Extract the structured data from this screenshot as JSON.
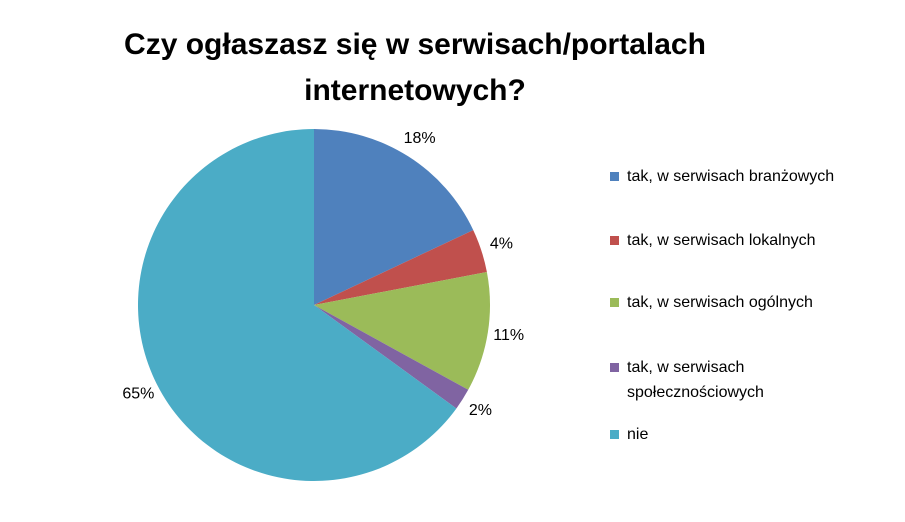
{
  "chart_data": {
    "type": "pie",
    "title": "Czy ogłaszasz się w serwisach/portalach internetowych?",
    "categories": [
      "tak, w serwisach branżowych",
      "tak, w serwisach lokalnych",
      "tak, w serwisach ogólnych",
      "tak, w serwisach społecznościowych",
      "nie"
    ],
    "values": [
      18,
      4,
      11,
      2,
      65
    ],
    "value_labels": [
      "18%",
      "4%",
      "11%",
      "2%",
      "65%"
    ],
    "colors": [
      "#4f81bd",
      "#c0504d",
      "#9bbb59",
      "#8064a2",
      "#4bacc6"
    ],
    "legend": "right"
  }
}
